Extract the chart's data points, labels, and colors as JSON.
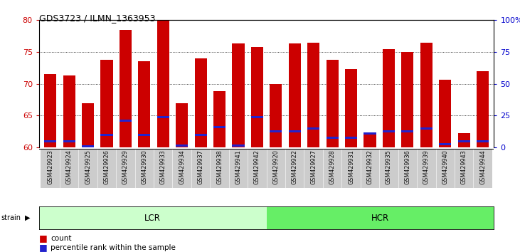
{
  "title": "GDS3723 / ILMN_1363953",
  "samples": [
    "GSM429923",
    "GSM429924",
    "GSM429925",
    "GSM429926",
    "GSM429929",
    "GSM429930",
    "GSM429933",
    "GSM429934",
    "GSM429937",
    "GSM429938",
    "GSM429941",
    "GSM429942",
    "GSM429920",
    "GSM429922",
    "GSM429927",
    "GSM429928",
    "GSM429931",
    "GSM429932",
    "GSM429935",
    "GSM429936",
    "GSM429939",
    "GSM429940",
    "GSM429943",
    "GSM429944"
  ],
  "count_values": [
    71.5,
    71.3,
    67.0,
    73.8,
    78.5,
    73.5,
    80.0,
    67.0,
    74.0,
    68.8,
    76.3,
    75.8,
    70.0,
    76.3,
    76.5,
    73.8,
    72.3,
    62.0,
    75.5,
    75.0,
    76.5,
    70.6,
    62.2,
    72.0
  ],
  "percentile_values": [
    61.0,
    61.0,
    60.2,
    62.0,
    64.2,
    62.0,
    64.8,
    60.3,
    62.0,
    63.2,
    60.3,
    64.8,
    62.5,
    62.5,
    63.0,
    61.5,
    61.5,
    62.2,
    62.5,
    62.5,
    63.0,
    60.5,
    61.0,
    61.0
  ],
  "ylim_left": [
    60,
    80
  ],
  "ylim_right": [
    0,
    100
  ],
  "bar_color": "#cc0000",
  "percentile_color": "#2222cc",
  "lcr_color": "#ccffcc",
  "hcr_color": "#66ee66",
  "axis_color_left": "#cc0000",
  "axis_color_right": "#0000cc",
  "bar_width": 0.65,
  "ybase": 60,
  "n_lcr": 12,
  "n_hcr": 12
}
